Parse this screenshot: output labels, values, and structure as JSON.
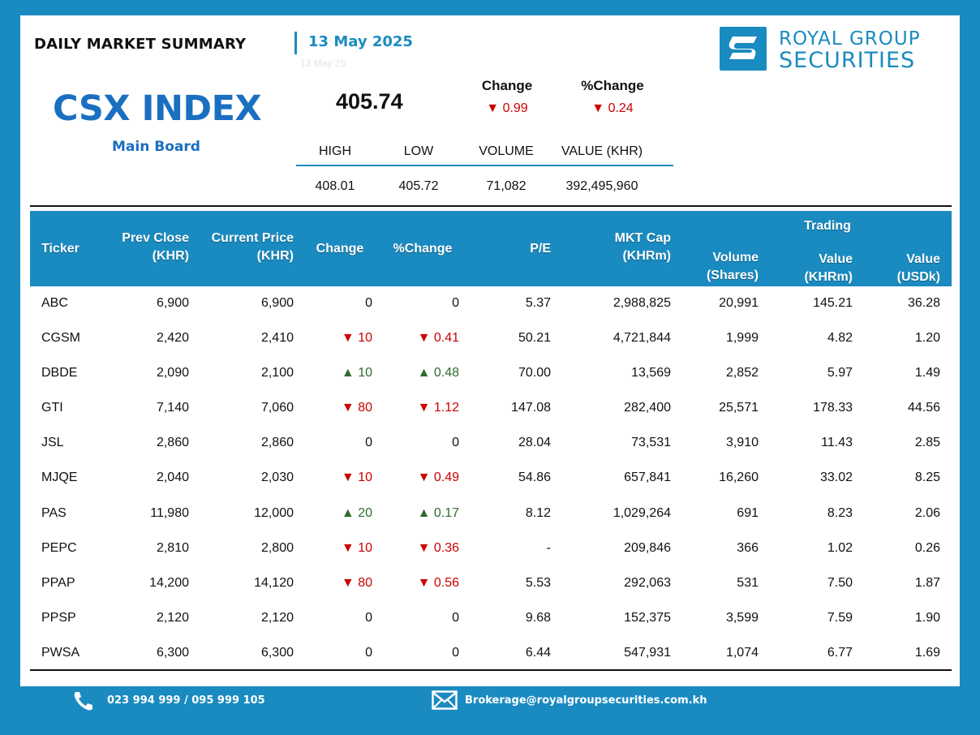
{
  "header": {
    "title": "DAILY MARKET SUMMARY",
    "date": "13 May 2025",
    "date_ghost": "13 May 25"
  },
  "logo": {
    "line1": "ROYAL GROUP",
    "line2": "SECURITIES"
  },
  "index": {
    "name": "CSX INDEX",
    "board": "Main Board",
    "value": "405.74",
    "change_label": "Change",
    "change_value": "▼ 0.99",
    "pct_change_label": "%Change",
    "pct_change_value": "▼ 0.24"
  },
  "stats": {
    "labels": [
      "HIGH",
      "LOW",
      "VOLUME",
      "VALUE (KHR)"
    ],
    "values": [
      "408.01",
      "405.72",
      "71,082",
      "392,495,960"
    ]
  },
  "table": {
    "headers": {
      "ticker": "Ticker",
      "prev_close_1": "Prev Close",
      "prev_close_2": "(KHR)",
      "current_1": "Current Price",
      "current_2": "(KHR)",
      "change": "Change",
      "pct_change": "%Change",
      "pe": "P/E",
      "mktcap_1": "MKT Cap",
      "mktcap_2": "(KHRm)",
      "volume_1": "Volume",
      "volume_2": "(Shares)",
      "trading": "Trading",
      "value_khr_1": "Value",
      "value_khr_2": "(KHRm)",
      "value_usd_1": "Value",
      "value_usd_2": "(USDk)"
    },
    "rows": [
      {
        "ticker": "ABC",
        "prev": "6,900",
        "curr": "6,900",
        "chg": "0",
        "pct": "0",
        "dir": "flat",
        "pe": "5.37",
        "mktcap": "2,988,825",
        "vol": "20,991",
        "val_khr": "145.21",
        "val_usd": "36.28"
      },
      {
        "ticker": "CGSM",
        "prev": "2,420",
        "curr": "2,410",
        "chg": "▼ 10",
        "pct": "▼ 0.41",
        "dir": "down",
        "pe": "50.21",
        "mktcap": "4,721,844",
        "vol": "1,999",
        "val_khr": "4.82",
        "val_usd": "1.20"
      },
      {
        "ticker": "DBDE",
        "prev": "2,090",
        "curr": "2,100",
        "chg": "▲ 10",
        "pct": "▲ 0.48",
        "dir": "up",
        "pe": "70.00",
        "mktcap": "13,569",
        "vol": "2,852",
        "val_khr": "5.97",
        "val_usd": "1.49"
      },
      {
        "ticker": "GTI",
        "prev": "7,140",
        "curr": "7,060",
        "chg": "▼ 80",
        "pct": "▼ 1.12",
        "dir": "down",
        "pe": "147.08",
        "mktcap": "282,400",
        "vol": "25,571",
        "val_khr": "178.33",
        "val_usd": "44.56"
      },
      {
        "ticker": "JSL",
        "prev": "2,860",
        "curr": "2,860",
        "chg": "0",
        "pct": "0",
        "dir": "flat",
        "pe": "28.04",
        "mktcap": "73,531",
        "vol": "3,910",
        "val_khr": "11.43",
        "val_usd": "2.85"
      },
      {
        "ticker": "MJQE",
        "prev": "2,040",
        "curr": "2,030",
        "chg": "▼ 10",
        "pct": "▼ 0.49",
        "dir": "down",
        "pe": "54.86",
        "mktcap": "657,841",
        "vol": "16,260",
        "val_khr": "33.02",
        "val_usd": "8.25"
      },
      {
        "ticker": "PAS",
        "prev": "11,980",
        "curr": "12,000",
        "chg": "▲ 20",
        "pct": "▲ 0.17",
        "dir": "up",
        "pe": "8.12",
        "mktcap": "1,029,264",
        "vol": "691",
        "val_khr": "8.23",
        "val_usd": "2.06"
      },
      {
        "ticker": "PEPC",
        "prev": "2,810",
        "curr": "2,800",
        "chg": "▼ 10",
        "pct": "▼ 0.36",
        "dir": "down",
        "pe": "-",
        "mktcap": "209,846",
        "vol": "366",
        "val_khr": "1.02",
        "val_usd": "0.26"
      },
      {
        "ticker": "PPAP",
        "prev": "14,200",
        "curr": "14,120",
        "chg": "▼ 80",
        "pct": "▼ 0.56",
        "dir": "down",
        "pe": "5.53",
        "mktcap": "292,063",
        "vol": "531",
        "val_khr": "7.50",
        "val_usd": "1.87"
      },
      {
        "ticker": "PPSP",
        "prev": "2,120",
        "curr": "2,120",
        "chg": "0",
        "pct": "0",
        "dir": "flat",
        "pe": "9.68",
        "mktcap": "152,375",
        "vol": "3,599",
        "val_khr": "7.59",
        "val_usd": "1.90"
      },
      {
        "ticker": "PWSA",
        "prev": "6,300",
        "curr": "6,300",
        "chg": "0",
        "pct": "0",
        "dir": "flat",
        "pe": "6.44",
        "mktcap": "547,931",
        "vol": "1,074",
        "val_khr": "6.77",
        "val_usd": "1.69"
      }
    ]
  },
  "footer": {
    "phone": "023 994 999 / 095 999 105",
    "email": "Brokerage@royalgroupsecurities.com.kh",
    "phone_icon": "phone-icon",
    "email_icon": "mail-icon"
  },
  "colors": {
    "brand": "#1a8bc0",
    "index_blue": "#1a6fc0",
    "down": "#cc0000",
    "up": "#2e6b2e"
  }
}
